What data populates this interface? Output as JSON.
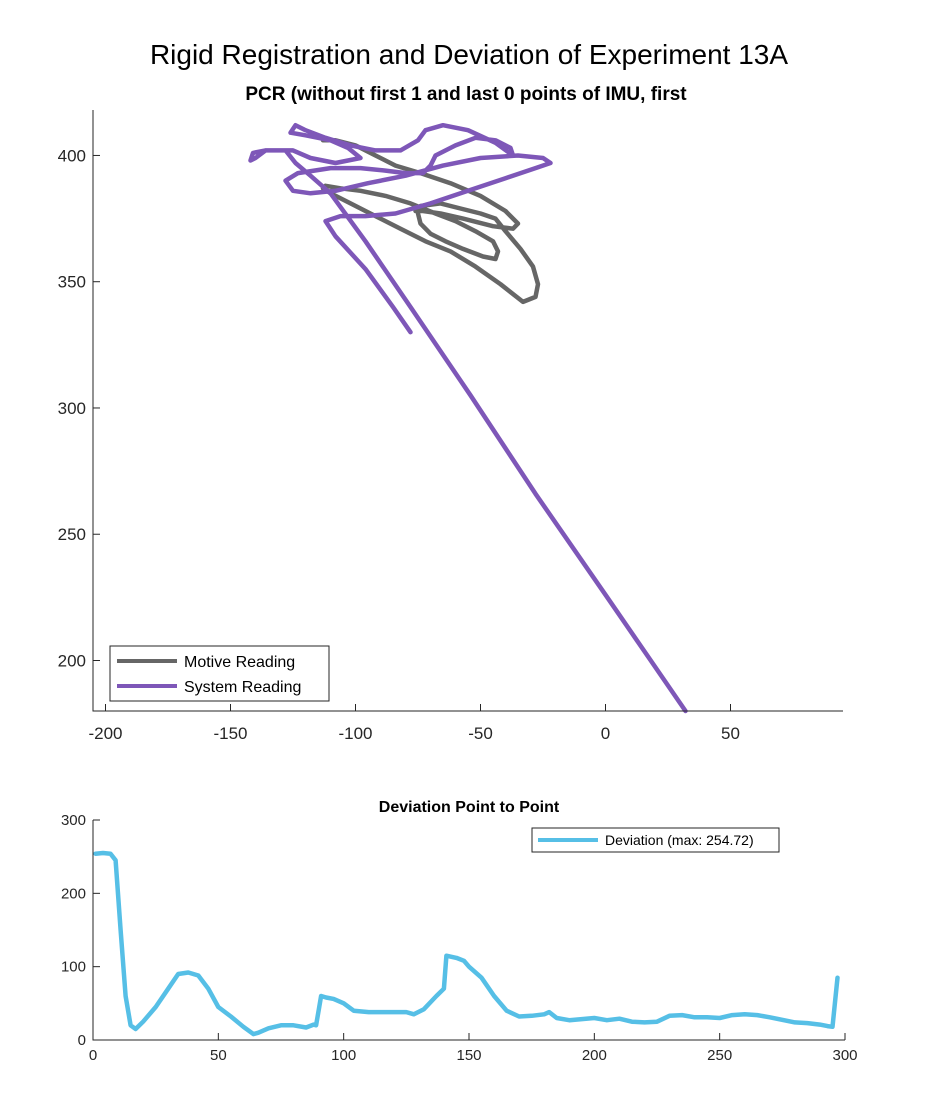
{
  "figure": {
    "title": "Rigid Registration and Deviation of Experiment 13A"
  },
  "chart_data": [
    {
      "type": "line",
      "title": "PCR (without first 1 and last 0 points of IMU, first",
      "xlabel": "",
      "ylabel": "",
      "xlim": [
        -205,
        95
      ],
      "ylim": [
        180,
        418
      ],
      "xticks": [
        -200,
        -150,
        -100,
        -50,
        0,
        50
      ],
      "yticks": [
        200,
        250,
        300,
        350,
        400
      ],
      "legend_position": "bottom-left",
      "grid": false,
      "series": [
        {
          "name": "Motive Reading",
          "color": "#666666",
          "x": [
            -113,
            -108,
            -100,
            -92,
            -84,
            -74,
            -62,
            -50,
            -40,
            -35,
            -37,
            -45,
            -57,
            -66,
            -73,
            -76,
            -74,
            -66,
            -58,
            -50,
            -44,
            -40,
            -34,
            -29,
            -27,
            -28,
            -33,
            -42,
            -52,
            -62,
            -72,
            -82,
            -92,
            -102,
            -110,
            -113,
            -112,
            -106,
            -98,
            -88,
            -78,
            -68,
            -60,
            -52,
            -45,
            -43,
            -44,
            -49,
            -57,
            -64,
            -70,
            -74,
            -75
          ],
          "y": [
            406,
            406,
            404,
            400,
            396,
            393,
            389,
            384,
            378,
            373,
            371,
            372,
            375,
            377,
            378,
            378,
            380,
            381,
            379,
            377,
            375,
            370,
            363,
            356,
            349,
            344,
            342,
            349,
            356,
            362,
            366,
            371,
            376,
            381,
            385,
            387,
            388,
            387,
            386,
            384,
            381,
            377,
            374,
            370,
            366,
            362,
            359,
            360,
            363,
            366,
            369,
            373,
            377
          ]
        },
        {
          "name": "System Reading",
          "color": "#7E57B8",
          "x": [
            -78,
            -85,
            -96,
            -108,
            -112,
            -106,
            -96,
            -84,
            -70,
            -55,
            -40,
            -28,
            -22,
            -25,
            -35,
            -50,
            -65,
            -80,
            -95,
            -108,
            -118,
            -125,
            -128,
            -123,
            -110,
            -98,
            -88,
            -80,
            -73,
            -70,
            -68,
            -60,
            -52,
            -44,
            -38,
            -37,
            -44,
            -55,
            -65,
            -72,
            -75,
            -82,
            -92,
            -102,
            -112,
            -120,
            -124,
            -126,
            -120,
            -110,
            -103,
            -98,
            -108,
            -118,
            -125,
            -130,
            -136,
            -140,
            -142,
            -141,
            -136,
            -131,
            -128,
            -124,
            -118,
            -110,
            -96,
            -78,
            -54,
            -28,
            0,
            16,
            32
          ],
          "y": [
            330,
            340,
            355,
            368,
            374,
            376,
            376,
            377,
            381,
            386,
            391,
            395,
            397,
            399,
            400,
            399,
            396,
            392,
            389,
            386,
            385,
            386,
            390,
            393,
            395,
            395,
            394,
            393,
            393,
            396,
            400,
            404,
            407,
            406,
            403,
            400,
            405,
            410,
            412,
            410,
            406,
            402,
            402,
            404,
            407,
            410,
            412,
            409,
            408,
            406,
            403,
            399,
            397,
            399,
            402,
            402,
            402,
            399,
            398,
            401,
            402,
            402,
            402,
            397,
            392,
            385,
            366,
            340,
            305,
            266,
            226,
            203,
            180
          ]
        }
      ]
    },
    {
      "type": "line",
      "title": "Deviation Point to Point",
      "xlabel": "",
      "ylabel": "",
      "xlim": [
        0,
        300
      ],
      "ylim": [
        0,
        300
      ],
      "xticks": [
        0,
        50,
        100,
        150,
        200,
        250,
        300
      ],
      "yticks": [
        0,
        100,
        200,
        300
      ],
      "legend_position": "top-right",
      "grid": false,
      "series": [
        {
          "name": "Deviation (max: 254.72)",
          "color": "#56BFE6",
          "x": [
            1,
            4,
            7,
            9,
            11,
            13,
            15,
            17,
            20,
            25,
            30,
            34,
            38,
            42,
            46,
            50,
            55,
            60,
            64,
            66,
            70,
            75,
            80,
            85,
            88,
            89,
            90,
            91,
            93,
            96,
            100,
            104,
            110,
            116,
            120,
            125,
            128,
            132,
            137,
            140,
            141,
            145,
            148,
            150,
            155,
            160,
            165,
            170,
            175,
            180,
            182,
            185,
            190,
            200,
            205,
            210,
            215,
            220,
            225,
            230,
            235,
            240,
            245,
            250,
            255,
            260,
            265,
            270,
            280,
            285,
            290,
            293,
            295,
            297
          ],
          "y": [
            254,
            255,
            254,
            245,
            150,
            60,
            20,
            15,
            25,
            45,
            70,
            90,
            92,
            88,
            70,
            45,
            32,
            18,
            8,
            10,
            16,
            20,
            20,
            17,
            21,
            20,
            40,
            60,
            58,
            56,
            50,
            40,
            38,
            38,
            38,
            38,
            35,
            42,
            60,
            70,
            115,
            112,
            108,
            100,
            85,
            60,
            40,
            32,
            33,
            35,
            38,
            30,
            27,
            30,
            27,
            29,
            25,
            24,
            25,
            33,
            34,
            31,
            31,
            30,
            34,
            35,
            34,
            31,
            24,
            23,
            21,
            19,
            18,
            85
          ]
        }
      ]
    }
  ]
}
